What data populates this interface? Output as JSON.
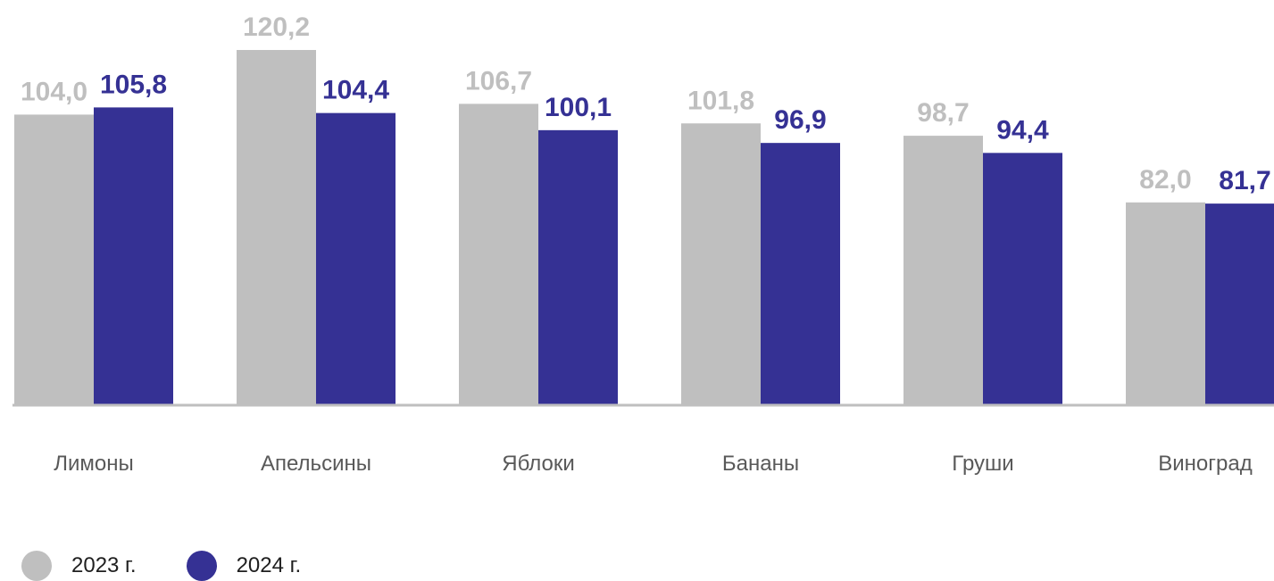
{
  "chart_data": {
    "type": "bar",
    "categories": [
      "Лимоны",
      "Апельсины",
      "Яблоки",
      "Бананы",
      "Груши",
      "Виноград"
    ],
    "series": [
      {
        "name": "2023 г.",
        "values": [
          104.0,
          120.2,
          106.7,
          101.8,
          98.7,
          82.0
        ],
        "labels": [
          "104,0",
          "120,2",
          "106,7",
          "101,8",
          "98,7",
          "82,0"
        ],
        "color": "#bfbfbf"
      },
      {
        "name": "2024 г.",
        "values": [
          105.8,
          104.4,
          100.1,
          96.9,
          94.4,
          81.7
        ],
        "labels": [
          "105,8",
          "104,4",
          "100,1",
          "96,9",
          "94,4",
          "81,7"
        ],
        "color": "#353194"
      }
    ],
    "ylim": [
      0,
      120.2
    ],
    "axis_color": "#bfbfbf",
    "grid": false,
    "legend_position": "bottom-left"
  }
}
